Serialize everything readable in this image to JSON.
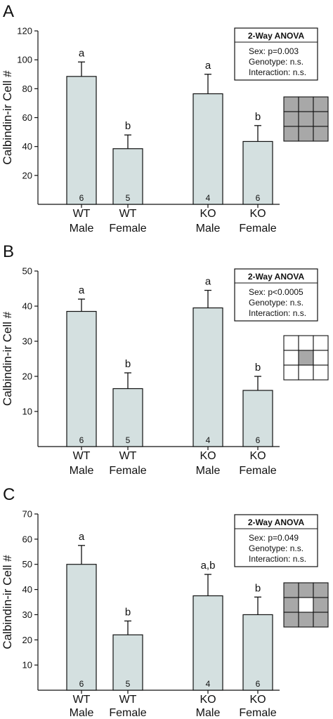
{
  "chart_data": [
    {
      "type": "bar",
      "panel_letter": "A",
      "ylabel": "Calbindin-ir Cell #",
      "ylim": [
        0,
        120
      ],
      "yticks": [
        20,
        40,
        60,
        80,
        100,
        120
      ],
      "categories": [
        {
          "line1": "WT",
          "line2": "Male"
        },
        {
          "line1": "WT",
          "line2": "Female"
        },
        {
          "line1": "KO",
          "line2": "Male"
        },
        {
          "line1": "KO",
          "line2": "Female"
        }
      ],
      "values": [
        88.5,
        38.5,
        76.5,
        43.5
      ],
      "errors": [
        10,
        9.5,
        13.5,
        11
      ],
      "sig_letters": [
        "a",
        "b",
        "a",
        "b"
      ],
      "n": [
        "6",
        "5",
        "4",
        "6"
      ],
      "bar_color": "#d4e0e0",
      "annotation": {
        "title": "2-Way ANOVA",
        "lines": [
          "Sex: p=0.003",
          "Genotype: n.s.",
          "Interaction: n.s."
        ]
      },
      "grid_icon": {
        "cells": [
          "gray",
          "gray",
          "gray",
          "gray",
          "gray",
          "gray",
          "gray",
          "gray",
          "gray"
        ]
      }
    },
    {
      "type": "bar",
      "panel_letter": "B",
      "ylabel": "Calbindin-ir Cell #",
      "ylim": [
        0,
        50
      ],
      "yticks": [
        10,
        20,
        30,
        40,
        50
      ],
      "categories": [
        {
          "line1": "WT",
          "line2": "Male"
        },
        {
          "line1": "WT",
          "line2": "Female"
        },
        {
          "line1": "KO",
          "line2": "Male"
        },
        {
          "line1": "KO",
          "line2": "Female"
        }
      ],
      "values": [
        38.5,
        16.5,
        39.5,
        16
      ],
      "errors": [
        3.5,
        4.5,
        5,
        4
      ],
      "sig_letters": [
        "a",
        "b",
        "a",
        "b"
      ],
      "n": [
        "6",
        "5",
        "4",
        "6"
      ],
      "bar_color": "#d4e0e0",
      "annotation": {
        "title": "2-Way ANOVA",
        "lines": [
          "Sex: p<0.0005",
          "Genotype: n.s.",
          "Interaction: n.s."
        ]
      },
      "grid_icon": {
        "cells": [
          "white",
          "white",
          "white",
          "white",
          "gray",
          "white",
          "white",
          "white",
          "white"
        ]
      }
    },
    {
      "type": "bar",
      "panel_letter": "C",
      "ylabel": "Calbindin-ir Cell #",
      "ylim": [
        0,
        70
      ],
      "yticks": [
        10,
        20,
        30,
        40,
        50,
        60,
        70
      ],
      "categories": [
        {
          "line1": "WT",
          "line2": "Male"
        },
        {
          "line1": "WT",
          "line2": "Female"
        },
        {
          "line1": "KO",
          "line2": "Male"
        },
        {
          "line1": "KO",
          "line2": "Female"
        }
      ],
      "values": [
        50,
        22,
        37.5,
        30
      ],
      "errors": [
        7.5,
        5.5,
        8.5,
        7
      ],
      "sig_letters": [
        "a",
        "b",
        "a,b",
        "b"
      ],
      "n": [
        "6",
        "5",
        "4",
        "6"
      ],
      "bar_color": "#d4e0e0",
      "annotation": {
        "title": "2-Way ANOVA",
        "lines": [
          "Sex: p=0.049",
          "Genotype: n.s.",
          "Interaction: n.s."
        ]
      },
      "grid_icon": {
        "cells": [
          "gray",
          "gray",
          "gray",
          "gray",
          "white",
          "gray",
          "gray",
          "gray",
          "gray"
        ]
      }
    }
  ],
  "colors": {
    "bar_fill": "#d4e0e0",
    "ink": "#111111",
    "icon_gray": "#a8a8a8",
    "icon_white": "#ffffff"
  }
}
